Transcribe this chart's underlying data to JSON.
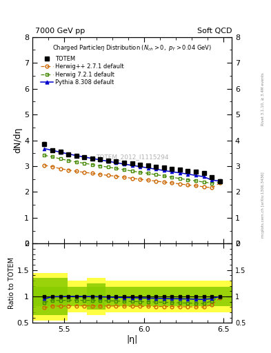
{
  "title_left": "7000 GeV pp",
  "title_right": "Soft QCD",
  "ylabel_main": "dN/dη",
  "ylabel_ratio": "Ratio to TOTEM",
  "xlabel": "|η|",
  "watermark": "TOTEM_2012_I1115294",
  "right_label": "mcplots.cern.ch [arXiv:1306.3436]",
  "rivet_label": "Rivet 3.1.10, ≥ 3.4M events",
  "ylim_main": [
    0,
    8
  ],
  "ylim_ratio": [
    0.5,
    2.0
  ],
  "xlim": [
    5.3,
    6.55
  ],
  "totem_x": [
    5.375,
    5.425,
    5.475,
    5.525,
    5.575,
    5.625,
    5.675,
    5.725,
    5.775,
    5.825,
    5.875,
    5.925,
    5.975,
    6.025,
    6.075,
    6.125,
    6.175,
    6.225,
    6.275,
    6.325,
    6.375,
    6.425,
    6.475
  ],
  "totem_y": [
    3.85,
    3.62,
    3.55,
    3.46,
    3.4,
    3.35,
    3.3,
    3.26,
    3.22,
    3.18,
    3.14,
    3.1,
    3.06,
    3.02,
    2.98,
    2.94,
    2.9,
    2.86,
    2.82,
    2.78,
    2.74,
    2.56,
    2.42
  ],
  "totem_err": [
    0.08,
    0.06,
    0.05,
    0.05,
    0.04,
    0.04,
    0.04,
    0.04,
    0.04,
    0.04,
    0.04,
    0.04,
    0.04,
    0.04,
    0.04,
    0.04,
    0.04,
    0.04,
    0.04,
    0.04,
    0.04,
    0.05,
    0.06
  ],
  "herwigpp_x": [
    5.375,
    5.425,
    5.475,
    5.525,
    5.575,
    5.625,
    5.675,
    5.725,
    5.775,
    5.825,
    5.875,
    5.925,
    5.975,
    6.025,
    6.075,
    6.125,
    6.175,
    6.225,
    6.275,
    6.325,
    6.375,
    6.425,
    6.475
  ],
  "herwigpp_y": [
    3.03,
    2.98,
    2.9,
    2.85,
    2.8,
    2.76,
    2.72,
    2.68,
    2.64,
    2.61,
    2.57,
    2.53,
    2.49,
    2.46,
    2.42,
    2.38,
    2.35,
    2.31,
    2.27,
    2.24,
    2.2,
    2.16,
    2.35
  ],
  "herwig7_x": [
    5.375,
    5.425,
    5.475,
    5.525,
    5.575,
    5.625,
    5.675,
    5.725,
    5.775,
    5.825,
    5.875,
    5.925,
    5.975,
    6.025,
    6.075,
    6.125,
    6.175,
    6.225,
    6.275,
    6.325,
    6.375,
    6.425,
    6.475
  ],
  "herwig7_y": [
    3.42,
    3.36,
    3.28,
    3.22,
    3.16,
    3.11,
    3.06,
    3.01,
    2.96,
    2.91,
    2.86,
    2.81,
    2.76,
    2.72,
    2.67,
    2.62,
    2.57,
    2.52,
    2.47,
    2.43,
    2.38,
    2.34,
    2.38
  ],
  "pythia_x": [
    5.375,
    5.425,
    5.475,
    5.525,
    5.575,
    5.625,
    5.675,
    5.725,
    5.775,
    5.825,
    5.875,
    5.925,
    5.975,
    6.025,
    6.075,
    6.125,
    6.175,
    6.225,
    6.275,
    6.325,
    6.375,
    6.425,
    6.475
  ],
  "pythia_y": [
    3.68,
    3.61,
    3.54,
    3.47,
    3.41,
    3.35,
    3.3,
    3.24,
    3.19,
    3.13,
    3.08,
    3.03,
    2.98,
    2.93,
    2.88,
    2.83,
    2.78,
    2.74,
    2.69,
    2.64,
    2.59,
    2.46,
    2.42
  ],
  "totem_color": "#000000",
  "herwigpp_color": "#cc6600",
  "herwig7_color": "#448800",
  "pythia_color": "#0000cc",
  "band_yellow": "#ffff44",
  "band_green": "#88cc00",
  "legend_labels": [
    "TOTEM",
    "Herwig++ 2.7.1 default",
    "Herwig 7.2.1 default",
    "Pythia 8.308 default"
  ],
  "yticks_main": [
    0,
    1,
    2,
    3,
    4,
    5,
    6,
    7,
    8
  ],
  "xticks": [
    5.5,
    6.0,
    6.5
  ]
}
